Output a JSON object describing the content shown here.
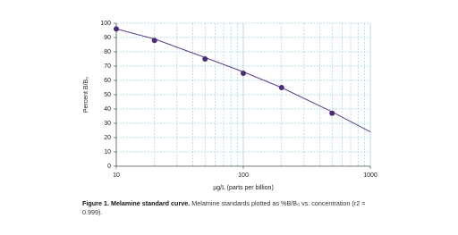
{
  "chart_data": {
    "type": "scatter",
    "y_label": "Percent B/B₀",
    "x_label": "µg/L (parts per billion)",
    "x": [
      10,
      20,
      50,
      100,
      200,
      500
    ],
    "values": [
      96,
      88,
      75,
      65,
      55,
      37
    ],
    "color": "#4b2a7a",
    "fit": {
      "x": [
        10,
        20,
        50,
        100,
        200,
        500,
        1000
      ],
      "values": [
        96,
        89,
        76,
        66,
        55,
        38,
        24
      ],
      "color": "#5b3f94"
    },
    "xlim": [
      10,
      1000
    ],
    "xticks": [
      10,
      100,
      1000
    ],
    "xlog": true,
    "x_minor_grid": [
      20,
      30,
      40,
      50,
      60,
      70,
      80,
      90,
      200,
      300,
      400,
      500,
      600,
      700,
      800,
      900
    ],
    "ylim": [
      0,
      100
    ],
    "yticks": [
      0,
      10,
      20,
      30,
      40,
      50,
      60,
      70,
      80,
      90,
      100
    ],
    "grid": true,
    "grid_color": "#9fd3e0"
  },
  "caption": {
    "label": "Figure 1. Melamine standard curve.",
    "text": "Melamine standards plotted as %B/B₀ vs. concentration (r2 = 0.999)."
  }
}
